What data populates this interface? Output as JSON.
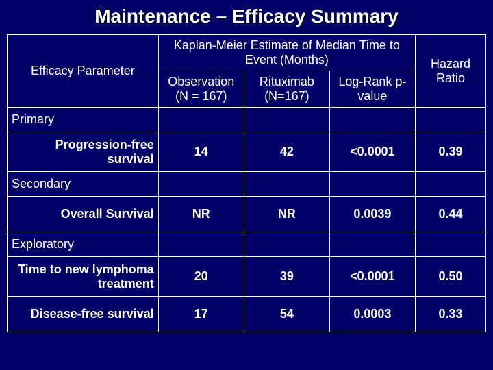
{
  "title": "Maintenance – Efficacy Summary",
  "headers": {
    "param": "Efficacy Parameter",
    "km": "Kaplan-Meier Estimate of Median Time to Event (Months)",
    "hazard": "Hazard Ratio",
    "obs": "Observation (N = 167)",
    "rit": "Rituximab (N=167)",
    "log": "Log-Rank p-value"
  },
  "sections": {
    "primary": "Primary",
    "secondary": "Secondary",
    "exploratory": "Exploratory"
  },
  "rows": {
    "pfs": {
      "label": "Progression-free survival",
      "obs": "14",
      "rit": "42",
      "log": "<0.0001",
      "hr": "0.39"
    },
    "os": {
      "label": "Overall Survival",
      "obs": "NR",
      "rit": "NR",
      "log": "0.0039",
      "hr": "0.44"
    },
    "ttn": {
      "label": "Time to new lymphoma treatment",
      "obs": "20",
      "rit": "39",
      "log": "<0.0001",
      "hr": "0.50"
    },
    "dfs": {
      "label": "Disease-free survival",
      "obs": "17",
      "rit": "54",
      "log": "0.0003",
      "hr": "0.33"
    }
  },
  "style": {
    "background": "#000066",
    "border": "#ffffff",
    "text": "#ffffff",
    "title_fontsize": 28,
    "cell_fontsize": 18
  }
}
